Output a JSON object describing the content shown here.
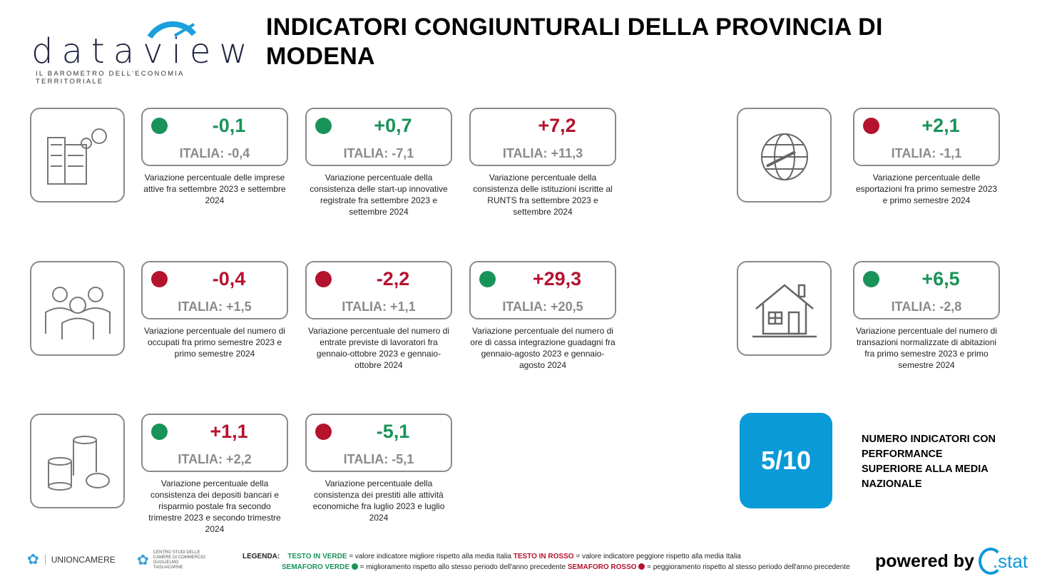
{
  "header": {
    "logo_word": "dataview",
    "logo_tagline": "IL BAROMETRO DELL'ECONOMIA TERRITORIALE",
    "title": "INDICATORI CONGIUNTURALI DELLA PROVINCIA DI MODENA"
  },
  "colors": {
    "green": "#1a9358",
    "red": "#b5122e",
    "blue": "#0a9ad8",
    "gray": "#8a8a8a"
  },
  "cards": [
    {
      "value": "-0,1",
      "value_color": "green",
      "light": "green",
      "italia": "ITALIA: -0,4",
      "desc": "Variazione percentuale delle imprese attive fra settembre 2023 e settembre 2024"
    },
    {
      "value": "+0,7",
      "value_color": "green",
      "light": "green",
      "italia": "ITALIA: -7,1",
      "desc": "Variazione percentuale della consistenza delle start-up innovative registrate fra settembre 2023 e settembre 2024"
    },
    {
      "value": "+7,2",
      "value_color": "red",
      "light": "none",
      "italia": "ITALIA: +11,3",
      "desc": "Variazione percentuale della consistenza delle istituzioni iscritte al RUNTS fra settembre 2023 e settembre 2024"
    },
    {
      "value": "+2,1",
      "value_color": "green",
      "light": "red",
      "italia": "ITALIA: -1,1",
      "desc": "Variazione percentuale delle esportazioni fra primo semestre 2023 e primo semestre 2024"
    },
    {
      "value": "-0,4",
      "value_color": "red",
      "light": "red",
      "italia": "ITALIA: +1,5",
      "desc": "Variazione percentuale del numero di occupati fra primo semestre 2023 e primo semestre 2024"
    },
    {
      "value": "-2,2",
      "value_color": "red",
      "light": "red",
      "italia": "ITALIA: +1,1",
      "desc": "Variazione percentuale del numero di entrate previste di lavoratori fra gennaio-ottobre 2023 e gennaio-ottobre 2024"
    },
    {
      "value": "+29,3",
      "value_color": "red",
      "light": "green",
      "italia": "ITALIA: +20,5",
      "desc": "Variazione percentuale del numero di ore di cassa integrazione guadagni fra gennaio-agosto 2023 e gennaio-agosto 2024"
    },
    {
      "value": "+6,5",
      "value_color": "green",
      "light": "green",
      "italia": "ITALIA: -2,8",
      "desc": "Variazione percentuale del numero di transazioni normalizzate di abitazioni fra primo semestre 2023 e primo semestre 2024"
    },
    {
      "value": "+1,1",
      "value_color": "red",
      "light": "green",
      "italia": "ITALIA: +2,2",
      "desc": "Variazione percentuale della consistenza dei depositi bancari e risparmio postale fra secondo trimestre 2023 e secondo trimestre 2024"
    },
    {
      "value": "-5,1",
      "value_color": "green",
      "light": "red",
      "italia": "ITALIA: -5,1",
      "desc": "Variazione percentuale della consistenza dei prestiti alle attività economiche fra luglio 2023 e luglio 2024"
    }
  ],
  "icons": [
    "buildings-gears-icon",
    "globe-plane-icon",
    "people-icon",
    "house-icon",
    "coins-icon"
  ],
  "score": {
    "value": "5/10",
    "label": "NUMERO INDICATORI CON PERFORMANCE SUPERIORE ALLA MEDIA NAZIONALE"
  },
  "footer": {
    "unioncamere": "UNIONCAMERE",
    "centro_studi": "CENTRO STUDI DELLE CAMERE DI COMMERCIO GUGLIELMO TAGLIACARNE",
    "legend_title": "LEGENDA:",
    "testo_verde": "TESTO IN VERDE",
    "testo_verde_desc": "= valore indicatore migliore rispetto alla media Italia",
    "testo_rosso": "TESTO IN ROSSO",
    "testo_rosso_desc": "= valore indicatore peggiore rispetto alla media Italia",
    "semaforo_verde": "SEMAFORO VERDE",
    "semaforo_verde_desc": "= miglioramento rispetto allo stesso periodo dell'anno precedente",
    "semaforo_rosso": "SEMAFORO ROSSO",
    "semaforo_rosso_desc": "= peggioramento rispetto al stesso periodo dell'anno precedente",
    "powered_by": "powered by",
    "brand": ".stat"
  }
}
